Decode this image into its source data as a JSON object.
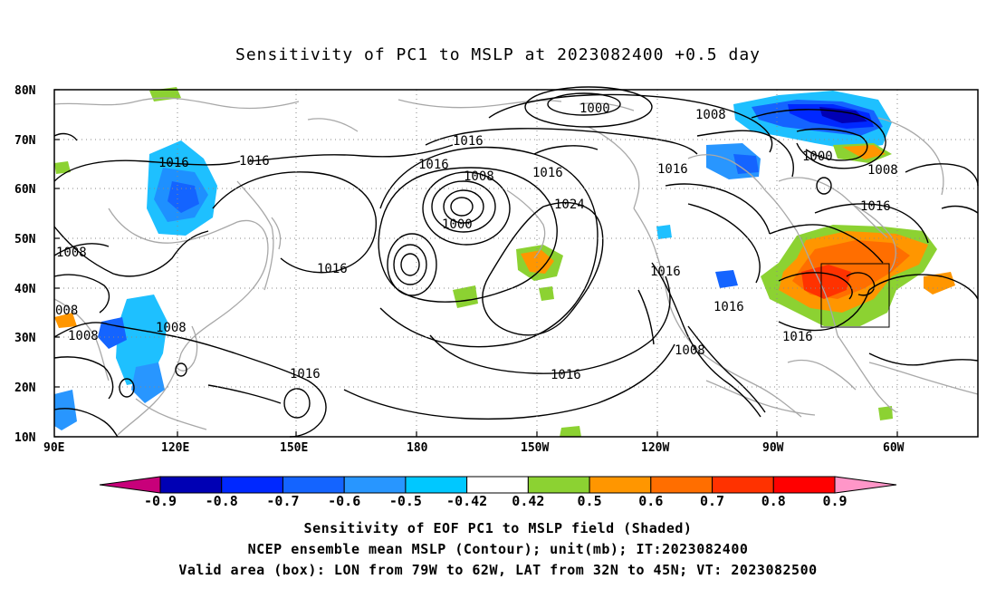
{
  "title": "Sensitivity of PC1 to MSLP at 2023082400 +0.5 day",
  "map": {
    "lat_labels": [
      "80N",
      "70N",
      "60N",
      "50N",
      "40N",
      "30N",
      "20N",
      "10N"
    ],
    "lon_labels": [
      "90E",
      "120E",
      "150E",
      "180",
      "150W",
      "120W",
      "90W",
      "60W"
    ],
    "lon_range": [
      "90E",
      "30W"
    ],
    "lat_range": [
      "10N",
      "80N"
    ],
    "contour_labels": [
      "1000",
      "1008",
      "1016",
      "1016",
      "1016",
      "1016",
      "1008",
      "1000",
      "1016",
      "1024",
      "1016",
      "1016",
      "1008",
      "1016",
      "1016",
      "1000",
      "1008",
      "1016",
      "1016",
      "1008",
      "1008",
      "008",
      "1016",
      "1008",
      "1016"
    ],
    "valid_box": {
      "lon_west": "79W",
      "lon_east": "62W",
      "lat_south": "32N",
      "lat_north": "45N"
    },
    "colors": {
      "contour": "#000000",
      "coast": "#a8a8a8",
      "grid": "#999999"
    }
  },
  "colorbar": {
    "labels": [
      "-0.9",
      "-0.8",
      "-0.7",
      "-0.6",
      "-0.5",
      "-0.42",
      "0.42",
      "0.5",
      "0.6",
      "0.7",
      "0.8",
      "0.9"
    ],
    "colors": [
      "#c8007a",
      "#0000b4",
      "#0028ff",
      "#1464ff",
      "#2896ff",
      "#00c8ff",
      "#ffffff",
      "#8cd232",
      "#ff9600",
      "#ff6e00",
      "#ff3200",
      "#ff0000",
      "#ff96c8"
    ]
  },
  "captions": {
    "line1": "Sensitivity of EOF PC1 to MSLP field (Shaded)",
    "line2": "NCEP ensemble mean MSLP (Contour); unit(mb); IT:2023082400",
    "line3": "Valid area (box): LON from 79W to 62W, LAT from 32N to 45N; VT: 2023082500"
  }
}
